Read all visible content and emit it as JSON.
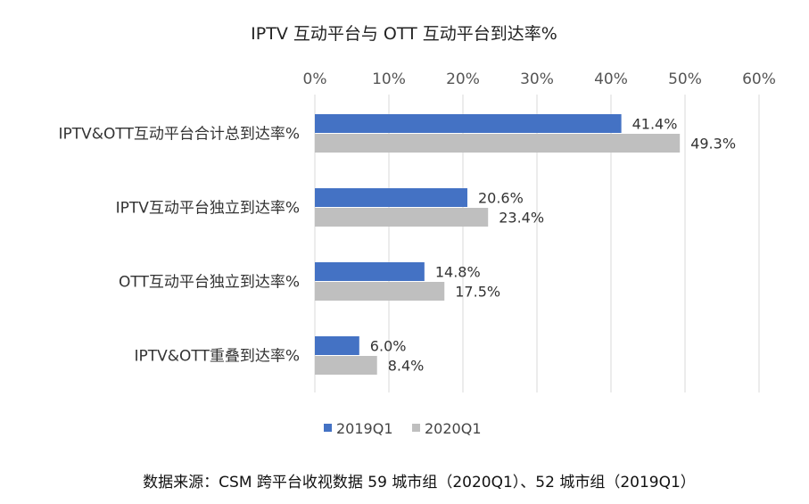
{
  "chart_data": {
    "type": "bar",
    "orientation": "horizontal",
    "title": "IPTV 互动平台与 OTT 互动平台到达率%",
    "categories": [
      "IPTV&OTT互动平台合计总到达率%",
      "IPTV互动平台独立到达率%",
      "OTT互动平台独立到达率%",
      "IPTV&OTT重叠到达率%"
    ],
    "series": [
      {
        "name": "2019Q1",
        "color": "#4472C4",
        "values": [
          41.4,
          20.6,
          14.8,
          6.0
        ],
        "labels": [
          "41.4%",
          "20.6%",
          "14.8%",
          "6.0%"
        ]
      },
      {
        "name": "2020Q1",
        "color": "#BFBFBF",
        "values": [
          49.3,
          23.4,
          17.5,
          8.4
        ],
        "labels": [
          "49.3%",
          "23.4%",
          "17.5%",
          "8.4%"
        ]
      }
    ],
    "xlim": [
      0,
      60
    ],
    "xticks": [
      0,
      10,
      20,
      30,
      40,
      50,
      60
    ],
    "xtick_labels": [
      "0%",
      "10%",
      "20%",
      "30%",
      "40%",
      "50%",
      "60%"
    ],
    "axis_position": "top",
    "grid": true,
    "legend_position": "bottom"
  },
  "source_note": "数据来源：CSM 跨平台收视数据  59 城市组（2020Q1）、52 城市组（2019Q1）"
}
